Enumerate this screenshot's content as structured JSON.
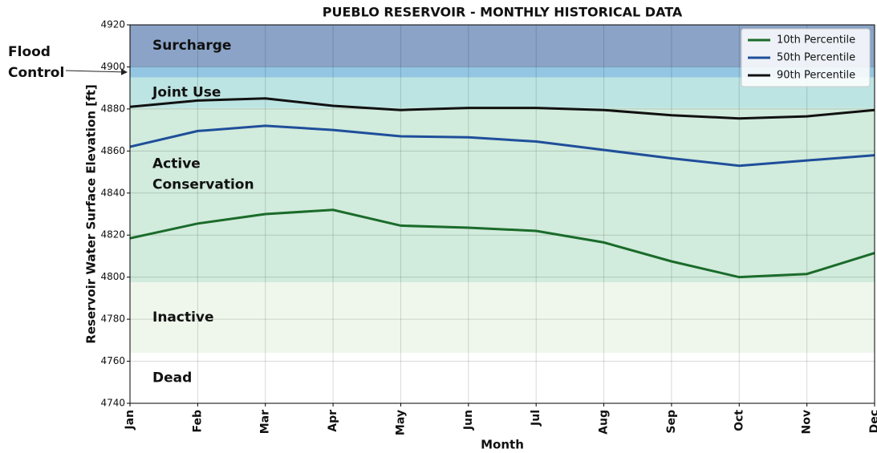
{
  "chart_data": {
    "type": "line",
    "title": "PUEBLO RESERVOIR - MONTHLY HISTORICAL DATA",
    "xlabel": "Month",
    "ylabel": "Reservoir Water Surface Elevation [ft]",
    "categories": [
      "Jan",
      "Feb",
      "Mar",
      "Apr",
      "May",
      "Jun",
      "Jul",
      "Aug",
      "Sep",
      "Oct",
      "Nov",
      "Dec"
    ],
    "series": [
      {
        "name": "10th Percentile",
        "color": "#1a6b2a",
        "values": [
          4818.5,
          4825.5,
          4830,
          4832,
          4824.5,
          4823.5,
          4822,
          4816.5,
          4807.5,
          4800,
          4801.5,
          4811.5
        ]
      },
      {
        "name": "50th Percentile",
        "color": "#1f4e9a",
        "values": [
          4862,
          4869.5,
          4872,
          4870,
          4867,
          4866.5,
          4864.5,
          4860.5,
          4856.5,
          4853,
          4855.5,
          4858
        ]
      },
      {
        "name": "90th Percentile",
        "color": "#111111",
        "values": [
          4881,
          4884,
          4885,
          4881.5,
          4879.5,
          4880.5,
          4880.5,
          4879.5,
          4877,
          4875.5,
          4876.5,
          4879.5
        ]
      }
    ],
    "zones": [
      {
        "label": [
          "Surcharge"
        ],
        "from": 4900,
        "to": 4920,
        "color": "#8aa3c6"
      },
      {
        "label": [
          "Flood",
          "Control"
        ],
        "from": 4895,
        "to": 4900,
        "color": "#93c6e2"
      },
      {
        "label": [
          "Joint Use"
        ],
        "from": 4880.5,
        "to": 4895,
        "color": "#bce4e2"
      },
      {
        "label": [
          "Active",
          "Conservation"
        ],
        "from": 4797.5,
        "to": 4880.5,
        "color": "#d1ebdc"
      },
      {
        "label": [
          "Inactive"
        ],
        "from": 4764,
        "to": 4797.5,
        "color": "#eff7ec"
      },
      {
        "label": [
          "Dead"
        ],
        "from": 4740,
        "to": 4764,
        "color": "#ffffff"
      }
    ],
    "ylim": [
      4740,
      4920
    ],
    "yticks": [
      4740,
      4760,
      4780,
      4800,
      4820,
      4840,
      4860,
      4880,
      4900,
      4920
    ],
    "grid": true,
    "legend": "upper right"
  }
}
